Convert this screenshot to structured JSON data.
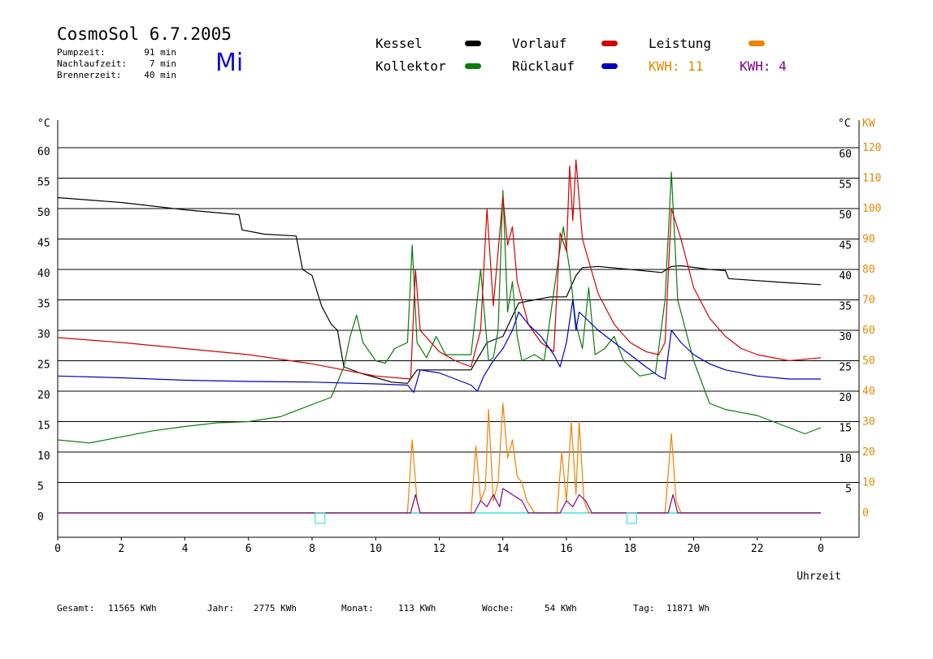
{
  "header": {
    "title": "CosmoSol 6.7.2005",
    "day": "Mi",
    "pump_label": "Pumpzeit:",
    "pump_value": "91 min",
    "nachlauf_label": "Nachlaufzeit:",
    "nachlauf_value": "7 min",
    "brenner_label": "Brennerzeit:",
    "brenner_value": "40 min"
  },
  "legend": {
    "kessel": "Kessel",
    "kollektor": "Kollektor",
    "vorlauf": "Vorlauf",
    "ruecklauf": "Rücklauf",
    "leistung": "Leistung",
    "kwh1": "KWH: 11",
    "kwh2": "KWH: 4"
  },
  "totals": {
    "gesamt_label": "Gesamt:",
    "gesamt_value": "11565 KWh",
    "jahr_label": "Jahr:",
    "jahr_value": "2775 KWh",
    "monat_label": "Monat:",
    "monat_value": "113 KWh",
    "woche_label": "Woche:",
    "woche_value": "54 KWh",
    "tag_label": "Tag:",
    "tag_value": "11871 Wh"
  },
  "colors": {
    "kessel": "#000000",
    "kollektor": "#0a7a0a",
    "vorlauf": "#d00000",
    "ruecklauf": "#0000c0",
    "leistung": "#f08000",
    "kwh2": "#800080",
    "baseline": "#40e0e0",
    "kw_axis": "#e08a00"
  },
  "chart_data": {
    "type": "line",
    "xlabel": "Uhrzeit",
    "ylabel_left": "°C",
    "ylabel_right_1": "°C",
    "ylabel_right_2": "KW",
    "x_ticks": [
      "0",
      "2",
      "4",
      "6",
      "8",
      "10",
      "12",
      "14",
      "16",
      "18",
      "20",
      "22",
      "0"
    ],
    "y_ticks_left": [
      "0",
      "5",
      "10",
      "15",
      "20",
      "25",
      "30",
      "35",
      "40",
      "45",
      "50",
      "55",
      "60"
    ],
    "y_ticks_right": [
      "5",
      "10",
      "15",
      "20",
      "25",
      "30",
      "35",
      "40",
      "45",
      "50",
      "55",
      "60"
    ],
    "y_ticks_kw": [
      "0",
      "10",
      "20",
      "30",
      "40",
      "50",
      "60",
      "70",
      "80",
      "90",
      "100",
      "110",
      "120"
    ],
    "xlim": [
      0,
      24
    ],
    "ylim": [
      0,
      65
    ],
    "grid": true,
    "markers_x": [
      8.25,
      18.05
    ],
    "series": [
      {
        "name": "Kessel",
        "points": [
          [
            0,
            51.8
          ],
          [
            2,
            51
          ],
          [
            4,
            49.8
          ],
          [
            5.7,
            49
          ],
          [
            5.8,
            46.5
          ],
          [
            6.5,
            45.8
          ],
          [
            7.5,
            45.5
          ],
          [
            7.7,
            40
          ],
          [
            8.0,
            39
          ],
          [
            8.3,
            34
          ],
          [
            8.6,
            31
          ],
          [
            8.8,
            30
          ],
          [
            9.0,
            24
          ],
          [
            9.5,
            23
          ],
          [
            10.5,
            21.5
          ],
          [
            11.0,
            21.3
          ],
          [
            11.3,
            23.5
          ],
          [
            12,
            23.5
          ],
          [
            13.0,
            23.5
          ],
          [
            13.5,
            28
          ],
          [
            14.0,
            29
          ],
          [
            14.5,
            34.5
          ],
          [
            15,
            35
          ],
          [
            15.5,
            35.5
          ],
          [
            16.0,
            35.5
          ],
          [
            16.3,
            39
          ],
          [
            16.5,
            40.3
          ],
          [
            17.0,
            40.5
          ],
          [
            18.0,
            40
          ],
          [
            19.0,
            39.5
          ],
          [
            19.3,
            40.5
          ],
          [
            19.6,
            40.6
          ],
          [
            20.5,
            40
          ],
          [
            21.0,
            39.8
          ],
          [
            21.1,
            38.5
          ],
          [
            23.0,
            37.8
          ],
          [
            24,
            37.5
          ]
        ]
      },
      {
        "name": "Kollektor",
        "points": [
          [
            0,
            12
          ],
          [
            1,
            11.5
          ],
          [
            2,
            12.5
          ],
          [
            3,
            13.5
          ],
          [
            4,
            14.2
          ],
          [
            5,
            14.8
          ],
          [
            6,
            15
          ],
          [
            7,
            15.8
          ],
          [
            8,
            17.8
          ],
          [
            8.6,
            19
          ],
          [
            9.0,
            24
          ],
          [
            9.2,
            29
          ],
          [
            9.4,
            32.5
          ],
          [
            9.6,
            28
          ],
          [
            10.0,
            25
          ],
          [
            10.3,
            24.6
          ],
          [
            10.6,
            27
          ],
          [
            11.0,
            28
          ],
          [
            11.15,
            44
          ],
          [
            11.3,
            28
          ],
          [
            11.6,
            25.5
          ],
          [
            11.9,
            29
          ],
          [
            12.2,
            26
          ],
          [
            13.0,
            26
          ],
          [
            13.3,
            40
          ],
          [
            13.55,
            25
          ],
          [
            13.7,
            25.5
          ],
          [
            13.85,
            30
          ],
          [
            14.0,
            53
          ],
          [
            14.15,
            33
          ],
          [
            14.3,
            38
          ],
          [
            14.45,
            29
          ],
          [
            14.6,
            25
          ],
          [
            15.0,
            26
          ],
          [
            15.3,
            25
          ],
          [
            15.7,
            40
          ],
          [
            15.9,
            47
          ],
          [
            16.1,
            40
          ],
          [
            16.3,
            31
          ],
          [
            16.5,
            27
          ],
          [
            16.7,
            37
          ],
          [
            16.9,
            26
          ],
          [
            17.2,
            27
          ],
          [
            17.5,
            29
          ],
          [
            17.8,
            25
          ],
          [
            18.3,
            22.5
          ],
          [
            18.8,
            23
          ],
          [
            19.1,
            35
          ],
          [
            19.3,
            56
          ],
          [
            19.5,
            35
          ],
          [
            20.0,
            25
          ],
          [
            20.5,
            18
          ],
          [
            21.0,
            17
          ],
          [
            21.5,
            16.5
          ],
          [
            22.0,
            16
          ],
          [
            22.5,
            15
          ],
          [
            23.0,
            14
          ],
          [
            23.5,
            13
          ],
          [
            24,
            14
          ]
        ]
      },
      {
        "name": "Vorlauf",
        "points": [
          [
            0,
            28.8
          ],
          [
            2,
            28
          ],
          [
            4,
            27
          ],
          [
            6,
            26
          ],
          [
            8,
            24.5
          ],
          [
            9,
            23.5
          ],
          [
            10,
            22.5
          ],
          [
            11.1,
            22
          ],
          [
            11.25,
            40
          ],
          [
            11.4,
            30
          ],
          [
            12,
            26.5
          ],
          [
            12.5,
            25
          ],
          [
            13.0,
            24
          ],
          [
            13.3,
            30
          ],
          [
            13.5,
            50
          ],
          [
            13.7,
            34
          ],
          [
            14.0,
            52
          ],
          [
            14.15,
            44
          ],
          [
            14.3,
            47
          ],
          [
            14.45,
            38
          ],
          [
            14.8,
            31
          ],
          [
            15.2,
            28
          ],
          [
            15.6,
            26.5
          ],
          [
            15.8,
            46
          ],
          [
            16.0,
            43
          ],
          [
            16.1,
            57
          ],
          [
            16.2,
            48
          ],
          [
            16.3,
            58
          ],
          [
            16.5,
            45
          ],
          [
            17.0,
            36
          ],
          [
            17.5,
            31
          ],
          [
            18.0,
            28
          ],
          [
            18.5,
            26.5
          ],
          [
            18.9,
            26
          ],
          [
            19.1,
            28
          ],
          [
            19.3,
            50
          ],
          [
            19.6,
            45
          ],
          [
            20.0,
            37
          ],
          [
            20.5,
            32
          ],
          [
            21.0,
            29
          ],
          [
            21.5,
            27
          ],
          [
            22.0,
            26
          ],
          [
            23.0,
            25
          ],
          [
            24,
            25.5
          ]
        ]
      },
      {
        "name": "Rücklauf",
        "points": [
          [
            0,
            22.5
          ],
          [
            2,
            22.2
          ],
          [
            4,
            21.8
          ],
          [
            6,
            21.6
          ],
          [
            8,
            21.5
          ],
          [
            10,
            21.2
          ],
          [
            11.0,
            21
          ],
          [
            11.2,
            19.8
          ],
          [
            11.4,
            23.5
          ],
          [
            12,
            23
          ],
          [
            12.5,
            22
          ],
          [
            13.0,
            21
          ],
          [
            13.2,
            20
          ],
          [
            13.4,
            22.5
          ],
          [
            13.7,
            25
          ],
          [
            14.0,
            27
          ],
          [
            14.3,
            30
          ],
          [
            14.5,
            33
          ],
          [
            14.8,
            31
          ],
          [
            15.2,
            29
          ],
          [
            15.6,
            26
          ],
          [
            15.8,
            24
          ],
          [
            16.0,
            28
          ],
          [
            16.2,
            35
          ],
          [
            16.3,
            30
          ],
          [
            16.4,
            33
          ],
          [
            16.6,
            32
          ],
          [
            17.0,
            30
          ],
          [
            17.5,
            28
          ],
          [
            18.0,
            26
          ],
          [
            18.5,
            24
          ],
          [
            18.9,
            22.5
          ],
          [
            19.1,
            22
          ],
          [
            19.3,
            30
          ],
          [
            19.6,
            28
          ],
          [
            20.0,
            26
          ],
          [
            20.5,
            24.5
          ],
          [
            21.0,
            23.5
          ],
          [
            22.0,
            22.5
          ],
          [
            23.0,
            22
          ],
          [
            24,
            22
          ]
        ]
      },
      {
        "name": "Leistung",
        "points": [
          [
            0,
            0
          ],
          [
            11.0,
            0
          ],
          [
            11.15,
            12
          ],
          [
            11.3,
            2
          ],
          [
            11.4,
            0
          ],
          [
            13.0,
            0
          ],
          [
            13.15,
            11
          ],
          [
            13.3,
            2
          ],
          [
            13.45,
            4
          ],
          [
            13.55,
            17
          ],
          [
            13.7,
            2
          ],
          [
            13.85,
            5
          ],
          [
            14.0,
            18
          ],
          [
            14.15,
            9
          ],
          [
            14.3,
            12
          ],
          [
            14.45,
            6
          ],
          [
            14.6,
            5
          ],
          [
            14.75,
            2
          ],
          [
            15.0,
            0
          ],
          [
            15.7,
            0
          ],
          [
            15.85,
            10
          ],
          [
            16.0,
            2
          ],
          [
            16.15,
            15
          ],
          [
            16.3,
            3
          ],
          [
            16.4,
            15
          ],
          [
            16.55,
            2
          ],
          [
            16.7,
            0
          ],
          [
            19.1,
            0
          ],
          [
            19.3,
            13
          ],
          [
            19.45,
            2
          ],
          [
            19.6,
            0
          ],
          [
            24,
            0
          ]
        ]
      },
      {
        "name": "KWH: 4",
        "points": [
          [
            0,
            0
          ],
          [
            11.1,
            0
          ],
          [
            11.25,
            3
          ],
          [
            11.4,
            0
          ],
          [
            13.1,
            0
          ],
          [
            13.3,
            2
          ],
          [
            13.5,
            1
          ],
          [
            13.7,
            3
          ],
          [
            13.9,
            1
          ],
          [
            14.0,
            4
          ],
          [
            14.3,
            3
          ],
          [
            14.6,
            2
          ],
          [
            14.8,
            0
          ],
          [
            15.8,
            0
          ],
          [
            16.0,
            2
          ],
          [
            16.2,
            1
          ],
          [
            16.4,
            3
          ],
          [
            16.6,
            2
          ],
          [
            16.8,
            0
          ],
          [
            19.2,
            0
          ],
          [
            19.35,
            3
          ],
          [
            19.5,
            0
          ],
          [
            24,
            0
          ]
        ]
      }
    ]
  }
}
